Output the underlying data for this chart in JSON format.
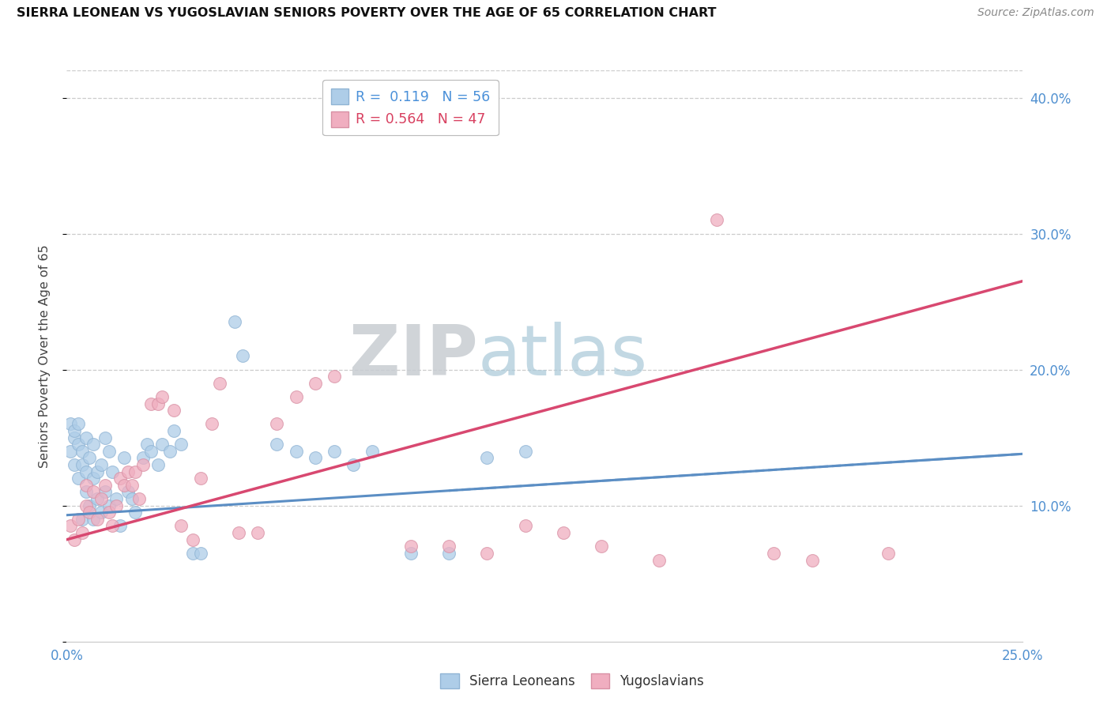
{
  "title": "SIERRA LEONEAN VS YUGOSLAVIAN SENIORS POVERTY OVER THE AGE OF 65 CORRELATION CHART",
  "source": "Source: ZipAtlas.com",
  "ylabel": "Seniors Poverty Over the Age of 65",
  "xlim": [
    0.0,
    0.25
  ],
  "ylim": [
    0.0,
    0.42
  ],
  "xticks": [
    0.0,
    0.05,
    0.1,
    0.15,
    0.2,
    0.25
  ],
  "yticks": [
    0.0,
    0.1,
    0.2,
    0.3,
    0.4
  ],
  "sl_R": 0.119,
  "sl_N": 56,
  "yu_R": 0.564,
  "yu_N": 47,
  "sl_color_fill": "#aecde8",
  "sl_color_edge": "#90b4d4",
  "sl_line_color": "#5b8ec4",
  "yu_color_fill": "#f0aec0",
  "yu_color_edge": "#d890a4",
  "yu_line_color": "#d84870",
  "background_color": "#ffffff",
  "grid_color": "#cccccc",
  "sl_scatter_x": [
    0.001,
    0.001,
    0.002,
    0.002,
    0.002,
    0.003,
    0.003,
    0.003,
    0.004,
    0.004,
    0.004,
    0.005,
    0.005,
    0.005,
    0.006,
    0.006,
    0.007,
    0.007,
    0.007,
    0.008,
    0.008,
    0.009,
    0.009,
    0.01,
    0.01,
    0.011,
    0.011,
    0.012,
    0.013,
    0.014,
    0.015,
    0.016,
    0.017,
    0.018,
    0.02,
    0.021,
    0.022,
    0.024,
    0.025,
    0.027,
    0.028,
    0.03,
    0.033,
    0.035,
    0.044,
    0.046,
    0.055,
    0.06,
    0.065,
    0.07,
    0.075,
    0.08,
    0.09,
    0.1,
    0.11,
    0.12
  ],
  "sl_scatter_y": [
    0.14,
    0.16,
    0.13,
    0.15,
    0.155,
    0.12,
    0.145,
    0.16,
    0.09,
    0.13,
    0.14,
    0.11,
    0.125,
    0.15,
    0.1,
    0.135,
    0.09,
    0.12,
    0.145,
    0.105,
    0.125,
    0.095,
    0.13,
    0.11,
    0.15,
    0.1,
    0.14,
    0.125,
    0.105,
    0.085,
    0.135,
    0.11,
    0.105,
    0.095,
    0.135,
    0.145,
    0.14,
    0.13,
    0.145,
    0.14,
    0.155,
    0.145,
    0.065,
    0.065,
    0.235,
    0.21,
    0.145,
    0.14,
    0.135,
    0.14,
    0.13,
    0.14,
    0.065,
    0.065,
    0.135,
    0.14
  ],
  "yu_scatter_x": [
    0.001,
    0.002,
    0.003,
    0.004,
    0.005,
    0.005,
    0.006,
    0.007,
    0.008,
    0.009,
    0.01,
    0.011,
    0.012,
    0.013,
    0.014,
    0.015,
    0.016,
    0.017,
    0.018,
    0.019,
    0.02,
    0.022,
    0.024,
    0.025,
    0.028,
    0.03,
    0.033,
    0.035,
    0.038,
    0.04,
    0.045,
    0.05,
    0.055,
    0.06,
    0.065,
    0.07,
    0.09,
    0.1,
    0.11,
    0.12,
    0.13,
    0.14,
    0.155,
    0.17,
    0.185,
    0.195,
    0.215
  ],
  "yu_scatter_y": [
    0.085,
    0.075,
    0.09,
    0.08,
    0.1,
    0.115,
    0.095,
    0.11,
    0.09,
    0.105,
    0.115,
    0.095,
    0.085,
    0.1,
    0.12,
    0.115,
    0.125,
    0.115,
    0.125,
    0.105,
    0.13,
    0.175,
    0.175,
    0.18,
    0.17,
    0.085,
    0.075,
    0.12,
    0.16,
    0.19,
    0.08,
    0.08,
    0.16,
    0.18,
    0.19,
    0.195,
    0.07,
    0.07,
    0.065,
    0.085,
    0.08,
    0.07,
    0.06,
    0.31,
    0.065,
    0.06,
    0.065
  ],
  "sl_line_x0": 0.0,
  "sl_line_y0": 0.093,
  "sl_line_x1": 0.25,
  "sl_line_y1": 0.138,
  "yu_line_x0": 0.0,
  "yu_line_y0": 0.075,
  "yu_line_x1": 0.25,
  "yu_line_y1": 0.265
}
